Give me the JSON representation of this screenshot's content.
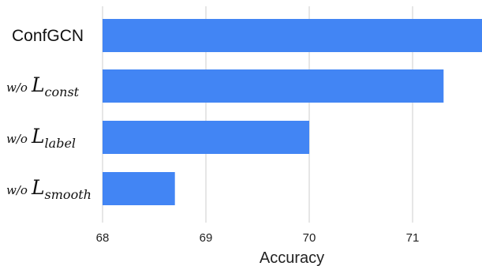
{
  "chart_data": {
    "type": "bar",
    "orientation": "horizontal",
    "categories": [
      {
        "plain": "ConfGCN"
      },
      {
        "prefix": "w/o",
        "symbol": "L",
        "subscript": "const"
      },
      {
        "prefix": "w/o",
        "symbol": "L",
        "subscript": "label"
      },
      {
        "prefix": "w/o",
        "symbol": "L",
        "subscript": "smooth"
      }
    ],
    "values": [
      71.7,
      71.3,
      70.0,
      68.7
    ],
    "xlabel": "Accuracy",
    "ylabel": "",
    "xlim": [
      68,
      71.7
    ],
    "xticks": [
      68,
      69,
      70,
      71
    ],
    "grid": true,
    "bar_color": "#4285f4",
    "grid_color": "#cccccc"
  }
}
